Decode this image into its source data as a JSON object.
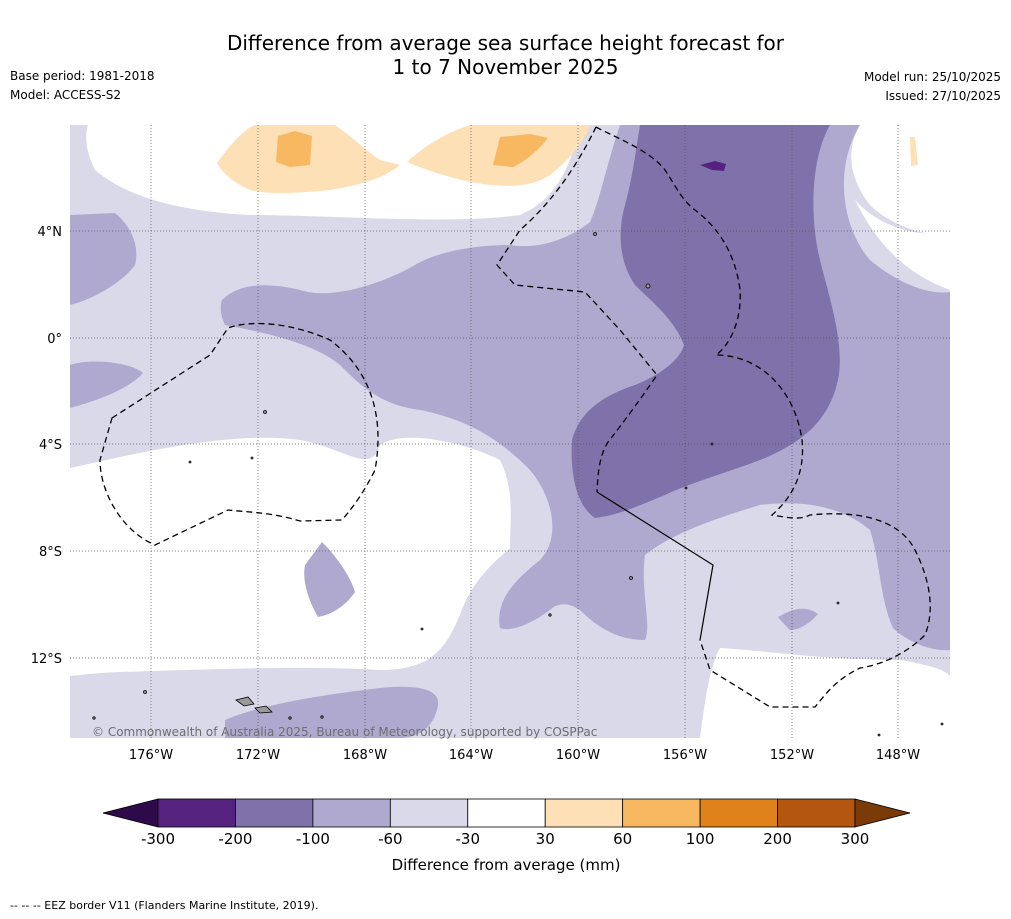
{
  "title": {
    "line1": "Difference from average sea surface height forecast for",
    "line2": "1 to 7 November 2025"
  },
  "meta": {
    "base_period": "Base period: 1981-2018",
    "model": "Model: ACCESS-S2",
    "model_run": "Model run: 25/10/2025",
    "issued": "Issued: 27/10/2025"
  },
  "map": {
    "copyright": "© Commonwealth of Australia 2025, Bureau of Meteorology, supported by COSPPac",
    "lat_ticks": [
      "4°N",
      "0°",
      "4°S",
      "8°S",
      "12°S"
    ],
    "lon_ticks": [
      "176°W",
      "172°W",
      "168°W",
      "164°W",
      "160°W",
      "156°W",
      "152°W",
      "148°W"
    ],
    "lat_range": [
      -14.9,
      8.0
    ],
    "lon_range": [
      -179.0,
      -146.0
    ]
  },
  "colorbar": {
    "title": "Difference from average (mm)",
    "levels": [
      "-300",
      "-200",
      "-100",
      "-60",
      "-30",
      "30",
      "60",
      "100",
      "200",
      "300"
    ],
    "colors": [
      "#55237f",
      "#7f72ab",
      "#b0a9cf",
      "#d9d9ea",
      "#ffffff",
      "#fde0b6",
      "#f8b862",
      "#e0821a",
      "#b25610"
    ],
    "extend_low": "#2d0a4a",
    "extend_high": "#7a3b08"
  },
  "palette": {
    "land": "#9a9a9a",
    "grid": "#555555"
  },
  "footer": "--  --  -- EEZ border V11 (Flanders Marine Institute, 2019)."
}
